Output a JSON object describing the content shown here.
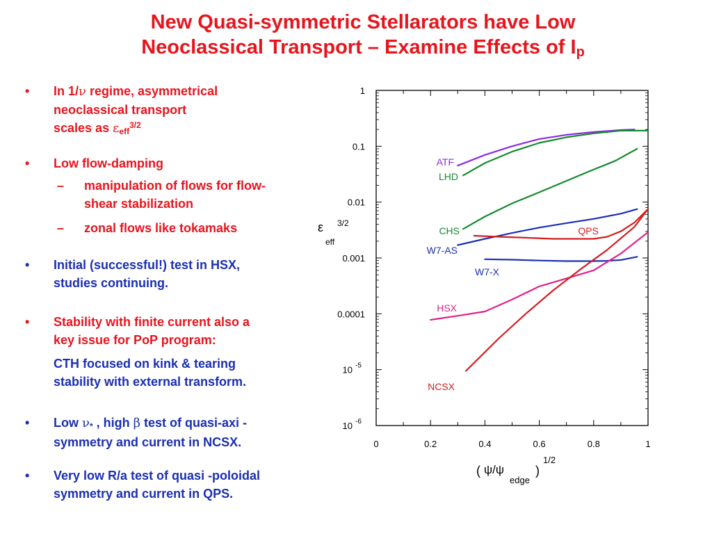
{
  "title": {
    "line1": "New Quasi-symmetric Stellarators have Low",
    "line2_main": "Neoclassical Transport – Examine Effects of I",
    "line2_sub": "p"
  },
  "bullets": {
    "b1": {
      "marker": "•",
      "l1a": "In 1/",
      "l1_nu": "ν",
      "l1b": " regime,  asymmetrical",
      "l2": "neoclassical transport",
      "l3": "scales as  ",
      "eps": "ε",
      "eff": "eff",
      "pow": "3/2"
    },
    "b2": {
      "marker": "•",
      "text": "Low flow-damping"
    },
    "s1": {
      "marker": "–",
      "l1": "manipulation of flows for flow-",
      "l2": "shear stabilization"
    },
    "s2": {
      "marker": "–",
      "text": "zonal flows like tokamaks"
    },
    "b3": {
      "marker": "•",
      "l1": "Initial (successful!) test in HSX,",
      "l2": "studies continuing."
    },
    "b4": {
      "marker": "•",
      "l1": "Stability with finite current also a",
      "l2": "key issue for PoP program:"
    },
    "p4": {
      "l1": "CTH focused on kink & tearing",
      "l2": "stability with external transform."
    },
    "b5": {
      "marker": "•",
      "l1a": "Low ",
      "nu": "ν",
      "star": "*",
      "l1b": " , high ",
      "beta": "β",
      "l1c": "  test of quasi-axi -",
      "l2": "symmetry and current in NCSX."
    },
    "b6": {
      "marker": "•",
      "l1": "Very low R/a test of quasi -poloidal",
      "l2": "symmetry and current in QPS."
    }
  },
  "colors": {
    "title": "#e8141c",
    "bullet_red": "#e8141c",
    "bullet_blue": "#1a2fb4",
    "ATF": "#8a2be2",
    "LHD": "#138a2c",
    "CHS": "#138a2c",
    "W7-AS": "#1a2fb4",
    "W7-X": "#1a2fb4",
    "QPS": "#d41c1c",
    "HSX": "#e0208a",
    "NCSX": "#d41c1c"
  },
  "chart_data": {
    "type": "line",
    "xlim": [
      0,
      1
    ],
    "ylim": [
      1e-06,
      1
    ],
    "y_scale": "log",
    "x_ticks": [
      "0",
      "0.2",
      "0.4",
      "0.6",
      "0.8",
      "1"
    ],
    "y_ticks": [
      "1",
      "0.1",
      "0.01",
      "0.001",
      "0.0001"
    ],
    "y_ticks_exp": [
      {
        "base": "10",
        "exp": "-5"
      },
      {
        "base": "10",
        "exp": "-6"
      }
    ],
    "ylabel": {
      "sym": "ε",
      "sup": "3/2",
      "sub": "eff"
    },
    "xlabel": {
      "open": "(",
      "sym": "ψ/ψ",
      "sub": "edge",
      "close": ")",
      "sup": "1/2"
    },
    "grid": false,
    "series": [
      {
        "name": "ATF",
        "x": [
          0.3,
          0.4,
          0.5,
          0.6,
          0.7,
          0.8,
          0.9,
          0.95
        ],
        "y": [
          0.045,
          0.07,
          0.1,
          0.135,
          0.16,
          0.18,
          0.195,
          0.2
        ]
      },
      {
        "name": "LHD",
        "x": [
          0.32,
          0.4,
          0.5,
          0.6,
          0.7,
          0.8,
          0.9,
          0.95,
          1.0
        ],
        "y": [
          0.03,
          0.05,
          0.08,
          0.115,
          0.145,
          0.17,
          0.19,
          0.19,
          0.19
        ]
      },
      {
        "name": "CHS",
        "x": [
          0.32,
          0.4,
          0.5,
          0.6,
          0.7,
          0.78,
          0.88,
          0.96
        ],
        "y": [
          0.0033,
          0.0055,
          0.0095,
          0.015,
          0.024,
          0.035,
          0.055,
          0.09
        ]
      },
      {
        "name": "W7-AS",
        "x": [
          0.3,
          0.4,
          0.5,
          0.6,
          0.7,
          0.8,
          0.9,
          0.96
        ],
        "y": [
          0.0017,
          0.0022,
          0.0028,
          0.0035,
          0.0042,
          0.005,
          0.0062,
          0.0075
        ]
      },
      {
        "name": "QPS",
        "x": [
          0.36,
          0.45,
          0.55,
          0.65,
          0.75,
          0.8,
          0.85,
          0.9,
          0.95,
          1.0
        ],
        "y": [
          0.0025,
          0.0024,
          0.0023,
          0.0022,
          0.0022,
          0.0022,
          0.0024,
          0.003,
          0.0043,
          0.0075
        ]
      },
      {
        "name": "W7-X",
        "x": [
          0.4,
          0.5,
          0.6,
          0.7,
          0.8,
          0.85,
          0.9,
          0.96
        ],
        "y": [
          0.00095,
          0.00093,
          0.0009,
          0.00088,
          0.00088,
          0.00089,
          0.00092,
          0.00105
        ]
      },
      {
        "name": "HSX",
        "x": [
          0.2,
          0.3,
          0.4,
          0.5,
          0.6,
          0.7,
          0.8,
          0.9,
          1.0
        ],
        "y": [
          7.8e-05,
          9.2e-05,
          0.00011,
          0.00018,
          0.00031,
          0.00043,
          0.0006,
          0.0012,
          0.0029
        ]
      },
      {
        "name": "NCSX",
        "x": [
          0.33,
          0.45,
          0.55,
          0.65,
          0.75,
          0.85,
          0.95,
          1.0
        ],
        "y": [
          9.5e-06,
          3.6e-05,
          0.0001,
          0.00026,
          0.00062,
          0.0014,
          0.0036,
          0.0075
        ]
      }
    ],
    "series_labels": [
      "ATF",
      "LHD",
      "CHS",
      "W7-AS",
      "QPS",
      "W7-X",
      "HSX",
      "NCSX"
    ]
  }
}
